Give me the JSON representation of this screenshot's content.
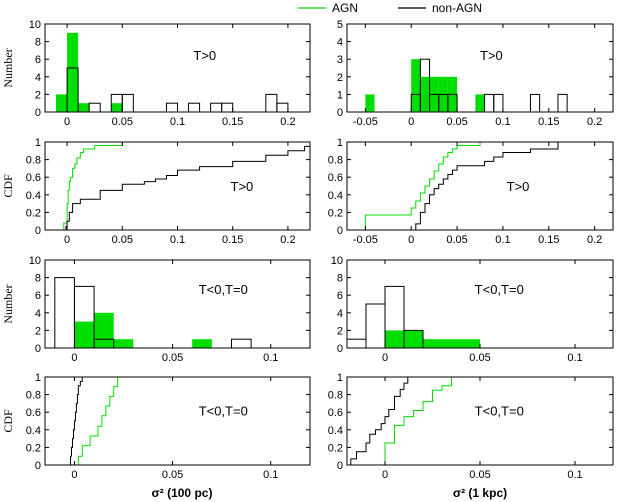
{
  "colors": {
    "agn": "#00dd00",
    "nonagn": "#000000"
  },
  "legend": [
    {
      "label": "AGN",
      "color": "#00dd00"
    },
    {
      "label": "non-AGN",
      "color": "#000000"
    }
  ],
  "chart_data": [
    {
      "type": "bar",
      "panel": "hist-100pc-T>0",
      "annotation": "T>0",
      "ylabel": "Number",
      "xlim": [
        -0.02,
        0.22
      ],
      "ylim": [
        0,
        10
      ],
      "xticks": [
        "0",
        "0.05",
        "0.1",
        "0.15",
        "0.2"
      ],
      "xtick_values": [
        0,
        0.05,
        0.1,
        0.15,
        0.2
      ],
      "yticks": [
        "0",
        "2",
        "4",
        "6",
        "8",
        "10"
      ],
      "ytick_values": [
        0,
        2,
        4,
        6,
        8,
        10
      ],
      "bin_width": 0.01,
      "series": [
        {
          "name": "AGN",
          "bin_starts": [
            -0.01,
            0.0,
            0.01,
            0.04
          ],
          "counts": [
            2,
            9,
            1,
            1
          ]
        },
        {
          "name": "non-AGN",
          "bin_starts": [
            0.0,
            0.02,
            0.04,
            0.05,
            0.09,
            0.11,
            0.13,
            0.14,
            0.18,
            0.19
          ],
          "counts": [
            5,
            1,
            2,
            2,
            1,
            1,
            1,
            1,
            2,
            1
          ]
        }
      ]
    },
    {
      "type": "bar",
      "panel": "hist-1kpc-T>0",
      "annotation": "T>0",
      "ylabel": "",
      "xlim": [
        -0.07,
        0.22
      ],
      "ylim": [
        0,
        5
      ],
      "xticks": [
        "-0.05",
        "0",
        "0.05",
        "0.1",
        "0.15",
        "0.2"
      ],
      "xtick_values": [
        -0.05,
        0,
        0.05,
        0.1,
        0.15,
        0.2
      ],
      "yticks": [
        "0",
        "1",
        "2",
        "3",
        "4",
        "5"
      ],
      "ytick_values": [
        0,
        1,
        2,
        3,
        4,
        5
      ],
      "bin_width": 0.01,
      "series": [
        {
          "name": "AGN",
          "bin_starts": [
            -0.05,
            0.0,
            0.01,
            0.02,
            0.03,
            0.04,
            0.07
          ],
          "counts": [
            1,
            3,
            2,
            2,
            2,
            2,
            1
          ]
        },
        {
          "name": "non-AGN",
          "bin_starts": [
            0.0,
            0.01,
            0.02,
            0.03,
            0.04,
            0.08,
            0.09,
            0.13,
            0.16
          ],
          "counts": [
            1,
            3,
            1,
            1,
            1,
            1,
            1,
            1,
            1
          ]
        }
      ]
    },
    {
      "type": "line",
      "panel": "cdf-100pc-T>0",
      "annotation": "T>0",
      "ylabel": "CDF",
      "xlim": [
        -0.02,
        0.22
      ],
      "ylim": [
        0,
        1
      ],
      "xticks": [
        "0",
        "0.05",
        "0.1",
        "0.15",
        "0.2"
      ],
      "xtick_values": [
        0,
        0.05,
        0.1,
        0.15,
        0.2
      ],
      "yticks": [
        "0",
        "0.2",
        "0.4",
        "0.6",
        "0.8",
        "1"
      ],
      "ytick_values": [
        0,
        0.2,
        0.4,
        0.6,
        0.8,
        1
      ],
      "series": [
        {
          "name": "AGN",
          "x": [
            -0.003,
            0.0,
            0.001,
            0.002,
            0.003,
            0.005,
            0.007,
            0.009,
            0.012,
            0.015,
            0.025,
            0.05
          ],
          "y": [
            0.08,
            0.3,
            0.45,
            0.55,
            0.6,
            0.7,
            0.75,
            0.82,
            0.88,
            0.92,
            0.96,
            1.0
          ]
        },
        {
          "name": "non-AGN",
          "x": [
            -0.001,
            0.0,
            0.002,
            0.005,
            0.012,
            0.03,
            0.05,
            0.07,
            0.08,
            0.09,
            0.1,
            0.12,
            0.15,
            0.18,
            0.2,
            0.215
          ],
          "y": [
            0.04,
            0.1,
            0.2,
            0.3,
            0.35,
            0.45,
            0.52,
            0.55,
            0.58,
            0.62,
            0.68,
            0.72,
            0.78,
            0.85,
            0.9,
            0.95
          ]
        }
      ]
    },
    {
      "type": "line",
      "panel": "cdf-1kpc-T>0",
      "annotation": "T>0",
      "ylabel": "",
      "xlim": [
        -0.07,
        0.22
      ],
      "ylim": [
        0,
        1
      ],
      "xticks": [
        "-0.05",
        "0",
        "0.05",
        "0.1",
        "0.15",
        "0.2"
      ],
      "xtick_values": [
        -0.05,
        0,
        0.05,
        0.1,
        0.15,
        0.2
      ],
      "yticks": [
        "0",
        "0.2",
        "0.4",
        "0.6",
        "0.8",
        "1"
      ],
      "ytick_values": [
        0,
        0.2,
        0.4,
        0.6,
        0.8,
        1
      ],
      "series": [
        {
          "name": "AGN",
          "x": [
            -0.05,
            0.0,
            0.005,
            0.01,
            0.015,
            0.02,
            0.025,
            0.03,
            0.035,
            0.04,
            0.045,
            0.05,
            0.075
          ],
          "y": [
            0.17,
            0.25,
            0.33,
            0.42,
            0.5,
            0.58,
            0.67,
            0.75,
            0.83,
            0.88,
            0.92,
            0.96,
            1.0
          ]
        },
        {
          "name": "non-AGN",
          "x": [
            0.005,
            0.01,
            0.015,
            0.02,
            0.025,
            0.03,
            0.035,
            0.04,
            0.045,
            0.05,
            0.08,
            0.09,
            0.1,
            0.13,
            0.16
          ],
          "y": [
            0.07,
            0.2,
            0.3,
            0.4,
            0.47,
            0.52,
            0.58,
            0.63,
            0.68,
            0.73,
            0.78,
            0.83,
            0.88,
            0.92,
            1.0
          ]
        }
      ]
    },
    {
      "type": "bar",
      "panel": "hist-100pc-T<0,T=0",
      "annotation": "T<0,T=0",
      "ylabel": "Number",
      "xlim": [
        -0.015,
        0.12
      ],
      "ylim": [
        0,
        10
      ],
      "xticks": [
        "0",
        "0.05",
        "0.1"
      ],
      "xtick_values": [
        0,
        0.05,
        0.1
      ],
      "yticks": [
        "0",
        "2",
        "4",
        "6",
        "8",
        "10"
      ],
      "ytick_values": [
        0,
        2,
        4,
        6,
        8,
        10
      ],
      "bin_width": 0.01,
      "series": [
        {
          "name": "AGN",
          "bin_starts": [
            0.0,
            0.01,
            0.02,
            0.06
          ],
          "counts": [
            3,
            4,
            1,
            1
          ]
        },
        {
          "name": "non-AGN",
          "bin_starts": [
            -0.01,
            0.0,
            0.01,
            0.08
          ],
          "counts": [
            8,
            7,
            1,
            1
          ]
        }
      ]
    },
    {
      "type": "bar",
      "panel": "hist-1kpc-T<0,T=0",
      "annotation": "T<0,T=0",
      "ylabel": "",
      "xlim": [
        -0.02,
        0.12
      ],
      "ylim": [
        0,
        10
      ],
      "xticks": [
        "0",
        "0.05",
        "0.1"
      ],
      "xtick_values": [
        0,
        0.05,
        0.1
      ],
      "yticks": [
        "0",
        "2",
        "4",
        "6",
        "8",
        "10"
      ],
      "ytick_values": [
        0,
        2,
        4,
        6,
        8,
        10
      ],
      "bin_width": 0.01,
      "series": [
        {
          "name": "AGN",
          "bin_starts": [
            0.0,
            0.01,
            0.02,
            0.03,
            0.04
          ],
          "counts": [
            2,
            2,
            1,
            1,
            1
          ]
        },
        {
          "name": "non-AGN",
          "bin_starts": [
            -0.02,
            -0.01,
            0.0,
            0.01
          ],
          "counts": [
            1,
            5,
            7,
            2
          ]
        }
      ]
    },
    {
      "type": "line",
      "panel": "cdf-100pc-T<0,T=0",
      "annotation": "T<0,T=0",
      "ylabel": "CDF",
      "xlim": [
        -0.015,
        0.12
      ],
      "ylim": [
        0,
        1
      ],
      "xticks": [
        "0",
        "0.05",
        "0.1"
      ],
      "xtick_values": [
        0,
        0.05,
        0.1
      ],
      "yticks": [
        "0",
        "0.2",
        "0.4",
        "0.6",
        "0.8",
        "1"
      ],
      "ytick_values": [
        0,
        0.2,
        0.4,
        0.6,
        0.8,
        1
      ],
      "series": [
        {
          "name": "AGN",
          "x": [
            0.002,
            0.004,
            0.008,
            0.012,
            0.014,
            0.016,
            0.018,
            0.02,
            0.022
          ],
          "y": [
            0.1,
            0.22,
            0.33,
            0.44,
            0.56,
            0.67,
            0.78,
            0.89,
            1.0
          ]
        },
        {
          "name": "non-AGN",
          "x": [
            -0.002,
            -0.0015,
            -0.001,
            -0.0005,
            0.0,
            0.0005,
            0.001,
            0.0015,
            0.002,
            0.003,
            0.004
          ],
          "y": [
            0.1,
            0.2,
            0.3,
            0.4,
            0.5,
            0.6,
            0.7,
            0.8,
            0.9,
            0.95,
            1.0
          ]
        }
      ]
    },
    {
      "type": "line",
      "panel": "cdf-1kpc-T<0,T=0",
      "annotation": "T<0,T=0",
      "ylabel": "",
      "xlim": [
        -0.02,
        0.12
      ],
      "ylim": [
        0,
        1
      ],
      "xticks": [
        "0",
        "0.05",
        "0.1"
      ],
      "xtick_values": [
        0,
        0.05,
        0.1
      ],
      "yticks": [
        "0",
        "0.2",
        "0.4",
        "0.6",
        "0.8",
        "1"
      ],
      "ytick_values": [
        0,
        0.2,
        0.4,
        0.6,
        0.8,
        1
      ],
      "series": [
        {
          "name": "AGN",
          "x": [
            0.0,
            0.005,
            0.01,
            0.015,
            0.02,
            0.025,
            0.03,
            0.035
          ],
          "y": [
            0.25,
            0.45,
            0.55,
            0.62,
            0.72,
            0.85,
            0.9,
            1.0
          ]
        },
        {
          "name": "non-AGN",
          "x": [
            -0.018,
            -0.015,
            -0.01,
            -0.008,
            -0.005,
            -0.002,
            0.0,
            0.002,
            0.005,
            0.008,
            0.01,
            0.012
          ],
          "y": [
            0.07,
            0.15,
            0.25,
            0.35,
            0.4,
            0.47,
            0.55,
            0.63,
            0.78,
            0.86,
            0.93,
            1.0
          ]
        }
      ]
    }
  ],
  "xlabels": {
    "left": "σ² (100 pc)",
    "right": "σ² (1 kpc)"
  }
}
